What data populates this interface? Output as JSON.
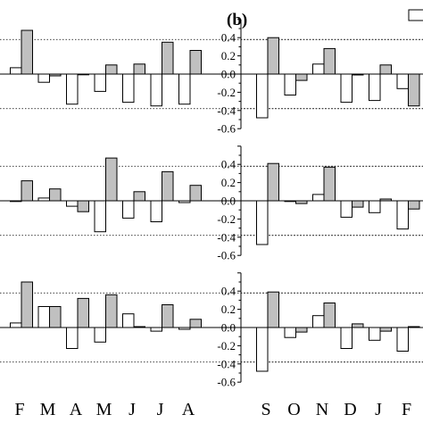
{
  "panel_label": "(b)",
  "colors": {
    "filled": "#c0c0c0",
    "open": "#ffffff",
    "stroke": "#000000"
  },
  "chart_data": [
    {
      "type": "bar",
      "group": "left",
      "row": 1,
      "categories": [
        "F",
        "M",
        "A",
        "M",
        "J",
        "J",
        "A"
      ],
      "series": [
        {
          "fill": "filled",
          "values": [
            0.48,
            -0.02,
            0.0,
            0.1,
            0.11,
            0.35,
            0.26
          ]
        },
        {
          "fill": "open",
          "values": [
            0.07,
            -0.09,
            -0.33,
            -0.19,
            -0.31,
            -0.35,
            -0.33
          ]
        }
      ],
      "reference_lines": [
        0.38,
        -0.38
      ],
      "ylim": [
        -0.6,
        0.6
      ]
    },
    {
      "type": "bar",
      "group": "left",
      "row": 2,
      "categories": [
        "F",
        "M",
        "A",
        "M",
        "J",
        "J",
        "A"
      ],
      "series": [
        {
          "fill": "filled",
          "values": [
            0.22,
            0.13,
            -0.12,
            0.47,
            0.1,
            0.32,
            0.17
          ]
        },
        {
          "fill": "open",
          "values": [
            0.0,
            0.03,
            -0.06,
            -0.34,
            -0.19,
            -0.23,
            -0.02
          ]
        }
      ],
      "reference_lines": [
        0.38,
        -0.38
      ],
      "ylim": [
        -0.6,
        0.6
      ]
    },
    {
      "type": "bar",
      "group": "left",
      "row": 3,
      "categories": [
        "F",
        "M",
        "A",
        "M",
        "J",
        "J",
        "A"
      ],
      "series": [
        {
          "fill": "filled",
          "values": [
            0.5,
            0.23,
            0.32,
            0.36,
            0.01,
            0.25,
            0.09
          ]
        },
        {
          "fill": "open",
          "values": [
            0.05,
            0.23,
            -0.23,
            -0.16,
            0.15,
            -0.04,
            -0.02
          ]
        }
      ],
      "reference_lines": [
        0.38,
        -0.38
      ],
      "ylim": [
        -0.6,
        0.6
      ]
    },
    {
      "type": "bar",
      "group": "right",
      "row": 1,
      "categories": [
        "S",
        "O",
        "N",
        "D",
        "J",
        "F",
        ""
      ],
      "series": [
        {
          "fill": "filled",
          "values": [
            0.4,
            -0.07,
            0.28,
            -0.01,
            0.1,
            -0.35,
            0.0
          ]
        },
        {
          "fill": "open",
          "values": [
            -0.48,
            -0.23,
            0.11,
            -0.31,
            -0.29,
            -0.16,
            0.0
          ]
        }
      ],
      "reference_lines": [
        0.38,
        -0.38
      ],
      "yticks": [
        "0.4",
        "0.2",
        "0.0",
        "-0.2",
        "-0.4",
        "-0.6"
      ],
      "ylim": [
        -0.6,
        0.6
      ]
    },
    {
      "type": "bar",
      "group": "right",
      "row": 2,
      "categories": [
        "S",
        "O",
        "N",
        "D",
        "J",
        "F",
        ""
      ],
      "series": [
        {
          "fill": "filled",
          "values": [
            0.41,
            -0.03,
            0.37,
            -0.07,
            0.02,
            -0.09,
            0.0
          ]
        },
        {
          "fill": "open",
          "values": [
            -0.48,
            0.0,
            0.07,
            -0.18,
            -0.13,
            -0.31,
            0.0
          ]
        }
      ],
      "reference_lines": [
        0.38,
        -0.38
      ],
      "yticks": [
        "0.4",
        "0.2",
        "0.0",
        "-0.2",
        "-0.4",
        "-0.6"
      ],
      "ylim": [
        -0.6,
        0.6
      ]
    },
    {
      "type": "bar",
      "group": "right",
      "row": 3,
      "categories": [
        "S",
        "O",
        "N",
        "D",
        "J",
        "F",
        ""
      ],
      "series": [
        {
          "fill": "filled",
          "values": [
            0.39,
            -0.05,
            0.27,
            0.04,
            -0.04,
            0.01,
            0.0
          ]
        },
        {
          "fill": "open",
          "values": [
            -0.48,
            -0.11,
            0.13,
            -0.23,
            -0.14,
            -0.26,
            0.0
          ]
        }
      ],
      "reference_lines": [
        0.38,
        -0.38
      ],
      "yticks": [
        "0.4",
        "0.2",
        "0.0",
        "-0.2",
        "-0.4",
        "-0.6"
      ],
      "ylim": [
        -0.6,
        0.6
      ]
    }
  ]
}
